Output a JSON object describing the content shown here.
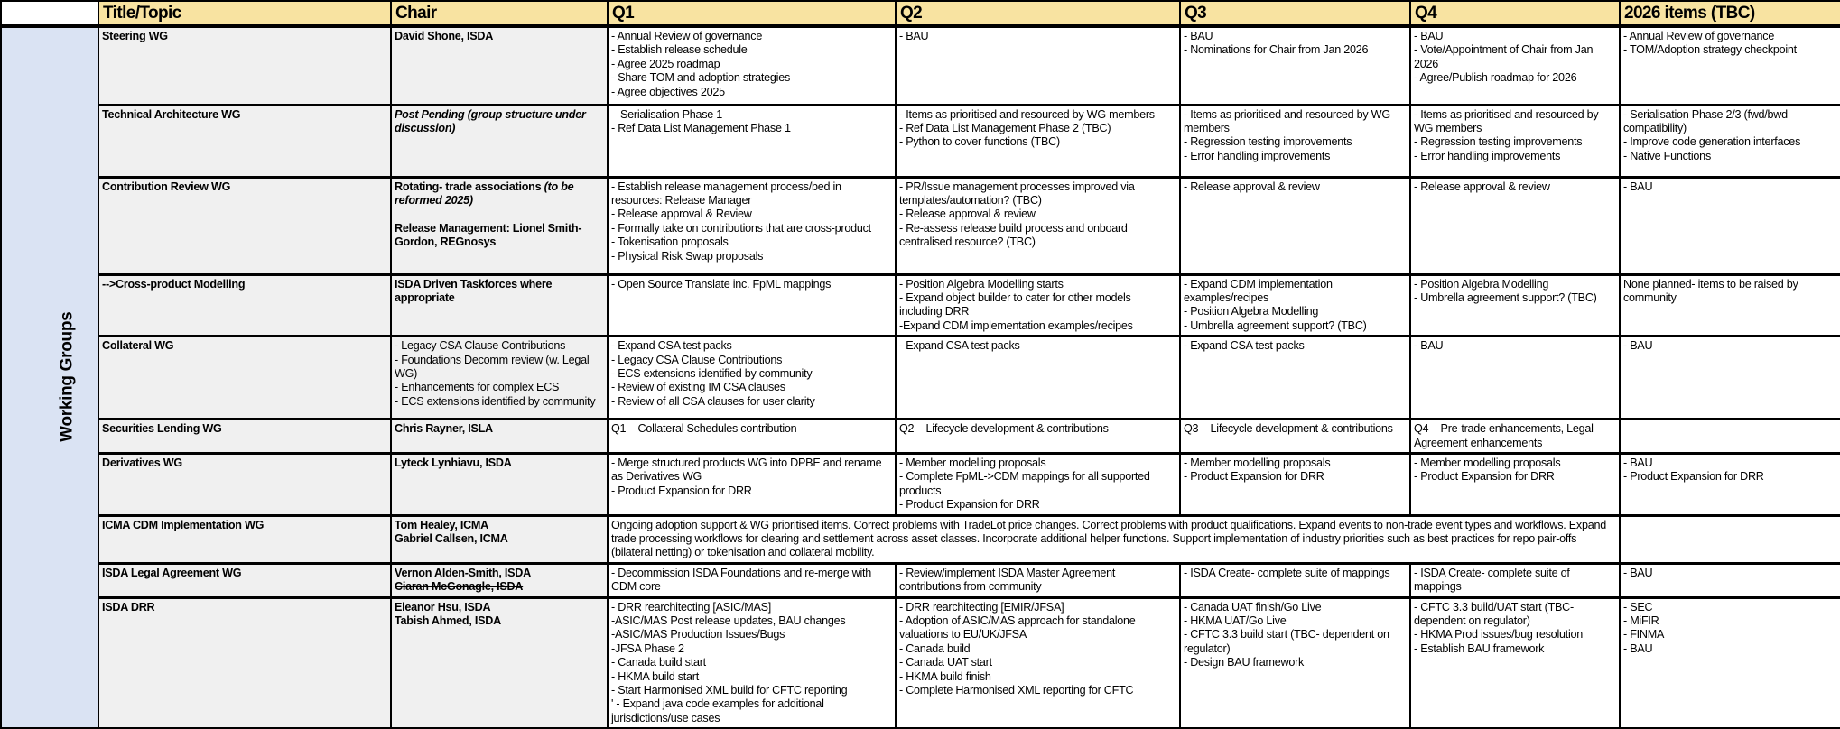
{
  "header": {
    "blank": "",
    "title": "Title/Topic",
    "chair": "Chair",
    "q1": "Q1",
    "q2": "Q2",
    "q3": "Q3",
    "q4": "Q4",
    "y2026": "2026 items (TBC)"
  },
  "side_label": "Working Groups",
  "colors": {
    "header_bg": "#f8e3a1",
    "side_bg": "#dae3f3",
    "label_bg": "#f0f0f0"
  },
  "rows": [
    {
      "title": "Steering WG",
      "chair": [
        [
          {
            "text": "David Shone, ISDA",
            "style": "b"
          }
        ]
      ],
      "q1": [
        "- Annual Review of governance",
        "- Establish release schedule",
        "- Agree 2025 roadmap",
        "- Share TOM and adoption strategies",
        "- Agree objectives 2025"
      ],
      "q2": [
        "- BAU"
      ],
      "q3": [
        "- BAU",
        "- Nominations for Chair from Jan 2026"
      ],
      "q4": [
        "- BAU",
        "- Vote/Appointment of Chair from Jan 2026",
        "- Agree/Publish roadmap for 2026"
      ],
      "y2026": [
        "- Annual Review of governance",
        "- TOM/Adoption strategy checkpoint"
      ]
    },
    {
      "title": "Technical Architecture WG",
      "chair": [
        [
          {
            "text": "Post Pending (group structure under discussion)",
            "style": "b i"
          }
        ]
      ],
      "q1": [
        "– Serialisation Phase 1",
        "- Ref Data List Management Phase 1"
      ],
      "q2": [
        "- Items as prioritised and resourced by WG members",
        "- Ref Data List Management Phase 2 (TBC)",
        "- Python to cover functions (TBC)"
      ],
      "q3": [
        "- Items as prioritised and resourced by WG members",
        "- Regression testing improvements",
        "- Error handling improvements"
      ],
      "q4": [
        "- Items as prioritised and resourced by WG members",
        "- Regression testing improvements",
        "- Error handling improvements"
      ],
      "y2026": [
        "- Serialisation Phase 2/3 (fwd/bwd compatibility)",
        "- Improve code generation interfaces",
        "- Native Functions"
      ]
    },
    {
      "title": "Contribution Review WG",
      "chair": [
        [
          {
            "text": "Rotating- trade associations ",
            "style": "b"
          },
          {
            "text": "(to be reformed 2025)",
            "style": "b i"
          }
        ],
        [
          {
            "text": "",
            "style": ""
          }
        ],
        [
          {
            "text": "Release Management: Lionel Smith-Gordon, REGnosys",
            "style": "b"
          }
        ]
      ],
      "q1": [
        "- Establish release management process/bed in resources: Release Manager",
        "- Release approval & Review",
        "- Formally take on contributions that are cross-product",
        "- Tokenisation proposals",
        "- Physical Risk Swap proposals"
      ],
      "q2": [
        "- PR/Issue management processes improved via templates/automation? (TBC)",
        "- Release approval & review",
        "- Re-assess release build process and onboard centralised resource? (TBC)"
      ],
      "q3": [
        "- Release approval & review"
      ],
      "q4": [
        "- Release approval & review"
      ],
      "y2026": [
        "- BAU"
      ]
    },
    {
      "title": "-->Cross-product Modelling",
      "chair": [
        [
          {
            "text": "ISDA Driven Taskforces where appropriate",
            "style": "b"
          }
        ]
      ],
      "q1": [
        " - Open Source Translate inc. FpML mappings"
      ],
      "q2": [
        "- Position Algebra Modelling starts",
        "- Expand object builder to cater for other models including DRR",
        "-Expand CDM implementation examples/recipes"
      ],
      "q3": [
        "- Expand CDM implementation examples/recipes",
        "- Position Algebra Modelling",
        "- Umbrella agreement support? (TBC)"
      ],
      "q4": [
        "- Position Algebra Modelling",
        "- Umbrella agreement support? (TBC)"
      ],
      "y2026": [
        "None planned- items to be raised by community"
      ]
    },
    {
      "title": "Collateral WG",
      "chair": [
        [
          {
            "text": "- Legacy CSA Clause Contributions",
            "style": ""
          }
        ],
        [
          {
            "text": "- Foundations Decomm review (w. Legal WG)",
            "style": ""
          }
        ],
        [
          {
            "text": "- Enhancements for complex ECS",
            "style": ""
          }
        ],
        [
          {
            "text": "- ECS extensions identified by community",
            "style": ""
          }
        ]
      ],
      "q1": [
        "- Expand CSA test packs",
        "- Legacy CSA Clause Contributions",
        "- ECS extensions identified by community",
        "- Review of existing IM CSA clauses",
        "- Review of all CSA clauses for user clarity"
      ],
      "q2": [
        "- Expand CSA test packs"
      ],
      "q3": [
        "- Expand CSA test packs"
      ],
      "q4": [
        "- BAU"
      ],
      "y2026": [
        "- BAU"
      ]
    },
    {
      "title": "Securities Lending WG",
      "chair": [
        [
          {
            "text": "Chris Rayner, ISLA",
            "style": "b"
          }
        ]
      ],
      "q1": [
        "Q1 – Collateral Schedules contribution"
      ],
      "q2": [
        "Q2 – Lifecycle development & contributions"
      ],
      "q3": [
        "Q3 – Lifecycle development & contributions"
      ],
      "q4": [
        "Q4 – Pre-trade enhancements, Legal Agreement enhancements"
      ],
      "y2026": []
    },
    {
      "title": "Derivatives WG",
      "chair": [
        [
          {
            "text": "Lyteck Lynhiavu, ISDA",
            "style": "b"
          }
        ]
      ],
      "q1": [
        "- Merge structured products WG into DPBE and rename as Derivatives WG",
        "- Product Expansion for DRR"
      ],
      "q2": [
        "- Member modelling proposals",
        "- Complete FpML->CDM mappings for all supported products",
        "- Product Expansion for DRR"
      ],
      "q3": [
        "- Member modelling proposals",
        "- Product Expansion for DRR"
      ],
      "q4": [
        "- Member modelling proposals",
        "- Product Expansion for DRR"
      ],
      "y2026": [
        "- BAU",
        "- Product Expansion for DRR"
      ]
    },
    {
      "title": "ICMA CDM Implementation WG",
      "chair": [
        [
          {
            "text": "Tom Healey, ICMA",
            "style": "b"
          }
        ],
        [
          {
            "text": "Gabriel Callsen, ICMA",
            "style": "b"
          }
        ]
      ],
      "merged": [
        "Ongoing adoption support & WG prioritised items. Correct problems with TradeLot price changes. Correct problems with product qualifications. Expand events to non-trade event types and workflows. Expand trade processing workflows for clearing and settlement across asset classes. Incorporate additional helper functions. Support implementation of industry priorities such as best practices for repo pair-offs (bilateral netting) or tokenisation and collateral mobility."
      ],
      "y2026": []
    },
    {
      "title": "ISDA Legal Agreement WG",
      "chair": [
        [
          {
            "text": "Vernon Alden-Smith, ISDA",
            "style": "b"
          }
        ],
        [
          {
            "text": "Ciaran McGonagle, ISDA",
            "style": "b s"
          }
        ]
      ],
      "q1": [
        "- Decommission ISDA Foundations and re-merge with CDM core"
      ],
      "q2": [
        "- Review/implement ISDA Master Agreement contributions from community"
      ],
      "q3": [
        " - ISDA Create- complete suite of mappings"
      ],
      "q4": [
        " - ISDA Create- complete suite of mappings"
      ],
      "y2026": [
        "- BAU"
      ]
    },
    {
      "title": "ISDA DRR",
      "chair": [
        [
          {
            "text": "Eleanor Hsu, ISDA",
            "style": "b"
          }
        ],
        [
          {
            "text": "Tabish Ahmed, ISDA",
            "style": "b"
          }
        ]
      ],
      "q1": [
        "- DRR rearchitecting [ASIC/MAS]",
        "-ASIC/MAS Post release updates, BAU changes",
        "-ASIC/MAS Production Issues/Bugs",
        "-JFSA Phase 2",
        "- Canada build start",
        "- HKMA build start",
        "- Start Harmonised XML build for CFTC reporting",
        "' - Expand java code examples for additional jurisdictions/use cases"
      ],
      "q2": [
        "-  DRR rearchitecting [EMIR/JFSA]",
        "- Adoption of ASIC/MAS approach for standalone valuations to EU/UK/JFSA",
        "- Canada build",
        "- Canada UAT start",
        "- HKMA build finish",
        "- Complete Harmonised XML reporting for CFTC"
      ],
      "q3": [
        "- Canada UAT finish/Go Live",
        "- HKMA UAT/Go Live",
        "- CFTC 3.3 build start (TBC- dependent on regulator)",
        "- Design BAU framework"
      ],
      "q4": [
        "- CFTC 3.3 build/UAT start (TBC-dependent on regulator)",
        "- HKMA Prod issues/bug resolution",
        "- Establish BAU framework"
      ],
      "y2026": [
        "- SEC",
        "- MiFIR",
        "- FINMA",
        "- BAU"
      ]
    }
  ]
}
